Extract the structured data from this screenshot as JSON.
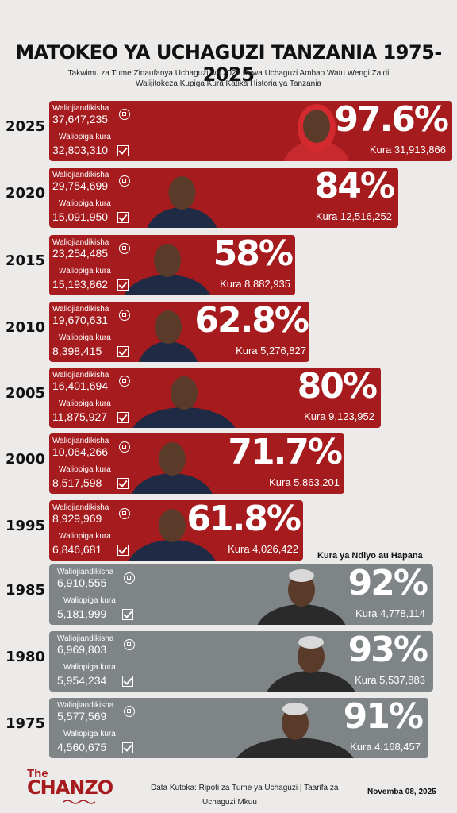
{
  "header": {
    "title": "MATOKEO YA UCHAGUZI TANZANIA 1975-2025",
    "subtitle_line1": "Takwimu za Tume Zinaufanya Uchaguzi wa 2025 Kuwa Uchaguzi Ambao Watu Wengi Zaidi",
    "subtitle_line2": "Walijitokeza Kupiga Kura Katika Historia ya Tanzania"
  },
  "labels": {
    "registered": "Waliojiandikisha",
    "voted": "Waliopiga kura",
    "referendum_note": "Kura ya Ndiyo au Hapana"
  },
  "chart_data": {
    "type": "bar",
    "title": "MATOKEO YA UCHAGUZI TANZANIA 1975-2025",
    "categories": [
      "2025",
      "2020",
      "2015",
      "2010",
      "2005",
      "2000",
      "1995",
      "1985",
      "1980",
      "1975"
    ],
    "series": [
      {
        "name": "Waliojiandikisha",
        "values": [
          37647235,
          29754699,
          23254485,
          19670631,
          16401694,
          10064266,
          8929969,
          6910555,
          6969803,
          5577569
        ]
      },
      {
        "name": "Waliopiga kura",
        "values": [
          32803310,
          15091950,
          15193862,
          8398415,
          11875927,
          8517598,
          6846681,
          5181999,
          5954234,
          4560675
        ]
      },
      {
        "name": "Kura",
        "values": [
          31913866,
          12516252,
          8882935,
          5276827,
          9123952,
          5863201,
          4026422,
          4778114,
          5537883,
          4168457
        ]
      },
      {
        "name": "Percent",
        "values": [
          97.6,
          84,
          58,
          62.8,
          80,
          71.7,
          61.8,
          92,
          93,
          91
        ]
      }
    ]
  },
  "rows": [
    {
      "year": "2025",
      "registered": "37,647,235",
      "voted": "32,803,310",
      "pct": "97.6%",
      "kura": "Kura 31,913,866",
      "color": "#a61b1e"
    },
    {
      "year": "2020",
      "registered": "29,754,699",
      "voted": "15,091,950",
      "pct": "84%",
      "kura": "Kura 12,516,252",
      "color": "#a61b1e"
    },
    {
      "year": "2015",
      "registered": "23,254,485",
      "voted": "15,193,862",
      "pct": "58%",
      "kura": "Kura 8,882,935",
      "color": "#a61b1e"
    },
    {
      "year": "2010",
      "registered": "19,670,631",
      "voted": "8,398,415",
      "pct": "62.8%",
      "kura": "Kura 5,276,827",
      "color": "#a61b1e"
    },
    {
      "year": "2005",
      "registered": "16,401,694",
      "voted": "11,875,927",
      "pct": "80%",
      "kura": "Kura 9,123,952",
      "color": "#a61b1e"
    },
    {
      "year": "2000",
      "registered": "10,064,266",
      "voted": "8,517,598",
      "pct": "71.7%",
      "kura": "Kura 5,863,201",
      "color": "#a61b1e"
    },
    {
      "year": "1995",
      "registered": "8,929,969",
      "voted": "6,846,681",
      "pct": "61.8%",
      "kura": "Kura 4,026,422",
      "color": "#a61b1e"
    },
    {
      "year": "1985",
      "registered": "6,910,555",
      "voted": "5,181,999",
      "pct": "92%",
      "kura": "Kura 4,778,114",
      "color": "#7f8487"
    },
    {
      "year": "1980",
      "registered": "6,969,803",
      "voted": "5,954,234",
      "pct": "93%",
      "kura": "Kura 5,537,883",
      "color": "#7f8487"
    },
    {
      "year": "1975",
      "registered": "5,577,569",
      "voted": "4,560,675",
      "pct": "91%",
      "kura": "Kura 4,168,457",
      "color": "#7f8487"
    }
  ],
  "footer": {
    "logo_small": "The",
    "logo_main": "CHANZO",
    "source_line1": "Data Kutoka: Ripoti za Tume ya Uchaguzi | Taarifa za",
    "source_line2": "Uchaguzi Mkuu",
    "date": "Novemba 08, 2025"
  }
}
